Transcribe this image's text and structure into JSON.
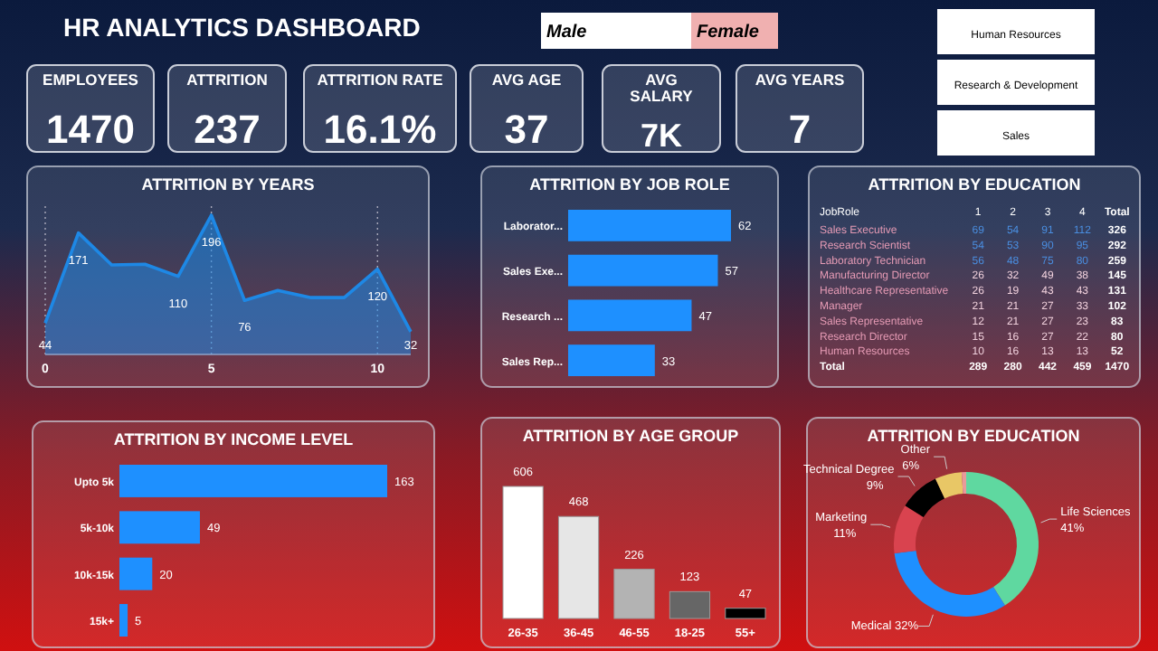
{
  "chart_data": [
    {
      "type": "other",
      "title": "HR ANALYTICS DASHBOARD",
      "categories": [
        "EMPLOYEES",
        "ATTRITION",
        "ATTRITION RATE",
        "AVG AGE",
        "AVG SALARY",
        "AVG YEARS"
      ],
      "annotations": [
        "Male",
        "Female",
        "Human Resources",
        "Research & Development",
        "Sales",
        "1470",
        "237",
        "16.1%",
        "37",
        "7K",
        "7"
      ]
    },
    {
      "type": "area",
      "title": "ATTRITION BY YEARS",
      "x": [
        0,
        1,
        2,
        3,
        4,
        5,
        6,
        7,
        8,
        9,
        10,
        11
      ],
      "values": [
        44,
        171,
        126,
        127,
        110,
        196,
        76,
        90,
        80,
        80,
        120,
        32
      ],
      "value_labels": [
        "44",
        "171",
        null,
        null,
        "110",
        "196",
        "76",
        null,
        null,
        null,
        "120",
        "32"
      ],
      "color": "#1e88e5",
      "xlim": [
        0,
        11
      ],
      "xticks": [
        0,
        5,
        10
      ],
      "grid": "x"
    },
    {
      "type": "bar",
      "orientation": "horizontal",
      "title": "ATTRITION BY JOB ROLE",
      "categories": [
        "Laborator...",
        "Sales Exe...",
        "Research ...",
        "Sales Rep..."
      ],
      "values": [
        62,
        57,
        47,
        33
      ],
      "color": "#1e90ff",
      "data_labels": true
    },
    {
      "type": "heatmap",
      "title": "ATTRITION BY EDUCATION",
      "ylabel": "JobRole",
      "data_labels": true,
      "categories": [
        "1",
        "2",
        "3",
        "4",
        "Total"
      ],
      "y_categories": [
        "Sales Executive",
        "Research Scientist",
        "Laboratory Technician",
        "Manufacturing Director",
        "Healthcare Representative",
        "Manager",
        "Sales Representative",
        "Research Director",
        "Human Resources",
        "Total"
      ],
      "cells": [
        [
          69,
          54,
          91,
          112,
          326
        ],
        [
          54,
          53,
          90,
          95,
          292
        ],
        [
          56,
          48,
          75,
          80,
          259
        ],
        [
          26,
          32,
          49,
          38,
          145
        ],
        [
          26,
          19,
          43,
          43,
          131
        ],
        [
          21,
          21,
          27,
          33,
          102
        ],
        [
          12,
          21,
          27,
          23,
          83
        ],
        [
          15,
          16,
          27,
          22,
          80
        ],
        [
          10,
          16,
          13,
          13,
          52
        ],
        [
          289,
          280,
          442,
          459,
          1470
        ]
      ]
    },
    {
      "type": "bar",
      "orientation": "horizontal",
      "title": "ATTRITION BY INCOME LEVEL",
      "categories": [
        "Upto 5k",
        "5k-10k",
        "10k-15k",
        "15k+"
      ],
      "values": [
        163,
        49,
        20,
        5
      ],
      "color": "#1e90ff",
      "data_labels": true
    },
    {
      "type": "bar",
      "title": "ATTRITION BY AGE GROUP",
      "categories": [
        "26-35",
        "36-45",
        "46-55",
        "18-25",
        "55+"
      ],
      "values": [
        606,
        468,
        226,
        123,
        47
      ],
      "colors": [
        "#ffffff",
        "#e6e6e6",
        "#b3b3b3",
        "#666666",
        "#000000"
      ],
      "data_labels": true
    },
    {
      "type": "donut",
      "title": "ATTRITION BY EDUCATION",
      "categories": [
        "Life Sciences",
        "Medical",
        "Marketing",
        "Technical Degree",
        "Other",
        null
      ],
      "values": [
        41,
        32,
        11,
        9,
        6,
        1
      ],
      "value_labels": [
        "41%",
        "32%",
        "11%",
        "9%",
        "6%",
        null
      ],
      "colors": [
        "#5fd8a0",
        "#1e90ff",
        "#d9434f",
        "#000000",
        "#e8c766",
        "#e89a9a"
      ]
    }
  ]
}
